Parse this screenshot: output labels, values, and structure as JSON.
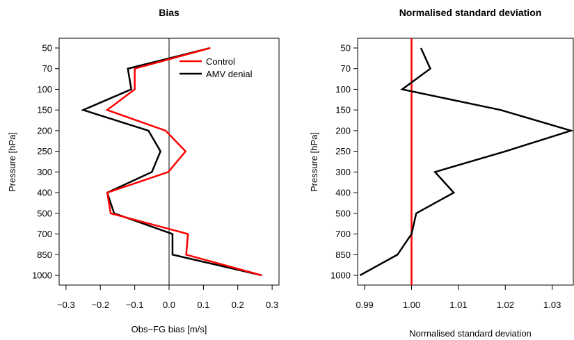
{
  "chart_data": [
    {
      "type": "line",
      "title": "Bias",
      "xlabel": "Obs−FG bias [m/s]",
      "ylabel": "Pressure [hPa]",
      "xlim": [
        -0.32,
        0.32
      ],
      "x_ticks": [
        "−0.3",
        "−0.2",
        "−0.1",
        "0.0",
        "0.1",
        "0.2",
        "0.3"
      ],
      "x_tick_values": [
        -0.3,
        -0.2,
        -0.1,
        0.0,
        0.1,
        0.2,
        0.3
      ],
      "y_categories": [
        "50",
        "70",
        "100",
        "150",
        "200",
        "250",
        "300",
        "400",
        "500",
        "700",
        "850",
        "1000"
      ],
      "y_direction": "top-to-bottom",
      "reference_line": {
        "x": 0.0,
        "color": "#000000"
      },
      "legend_position": "top-right",
      "series": [
        {
          "name": "Control",
          "color": "#ff0000",
          "x": [
            0.12,
            -0.1,
            -0.1,
            -0.18,
            -0.01,
            0.048,
            -0.002,
            -0.18,
            -0.17,
            0.055,
            0.05,
            0.27
          ]
        },
        {
          "name": "AMV denial",
          "color": "#000000",
          "x": [
            0.12,
            -0.12,
            -0.11,
            -0.25,
            -0.06,
            -0.025,
            -0.05,
            -0.18,
            -0.16,
            0.01,
            0.01,
            0.27
          ]
        }
      ]
    },
    {
      "type": "line",
      "title": "Normalised standard deviation",
      "xlabel": "Normalised standard deviation",
      "ylabel": "Pressure [hPa]",
      "xlim": [
        0.9885,
        1.0345
      ],
      "x_ticks": [
        "0.99",
        "1.00",
        "1.01",
        "1.02",
        "1.03"
      ],
      "x_tick_values": [
        0.99,
        1.0,
        1.01,
        1.02,
        1.03
      ],
      "y_categories": [
        "50",
        "70",
        "100",
        "150",
        "200",
        "250",
        "300",
        "400",
        "500",
        "700",
        "850",
        "1000"
      ],
      "y_direction": "top-to-bottom",
      "reference_line": {
        "x": 1.0,
        "color": "#ff0000"
      },
      "series": [
        {
          "color": "#000000",
          "x": [
            1.002,
            1.004,
            0.998,
            1.019,
            1.034,
            1.02,
            1.005,
            1.009,
            1.001,
            1.0,
            0.997,
            0.989
          ]
        }
      ]
    }
  ]
}
